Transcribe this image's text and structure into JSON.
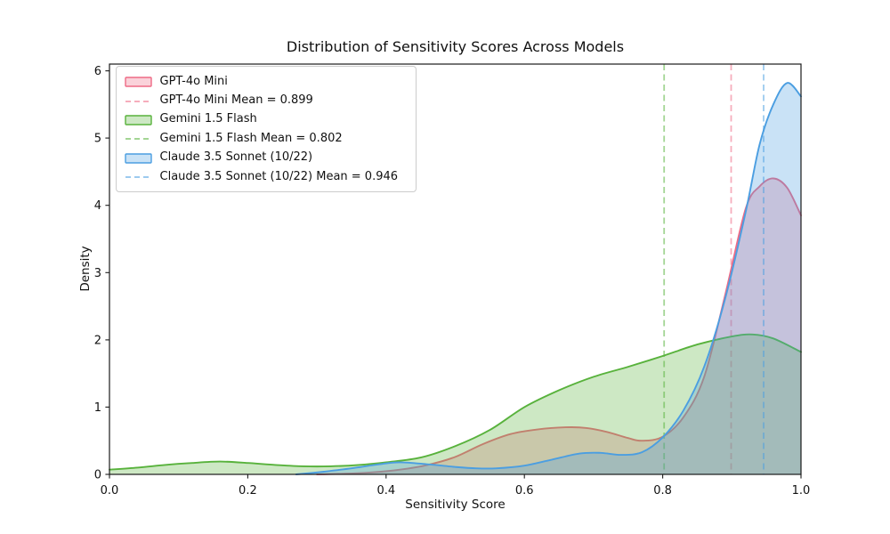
{
  "title": "Distribution of Sensitivity Scores Across Models",
  "chart_data": {
    "type": "area",
    "subtype": "kde-density",
    "title": "Distribution of Sensitivity Scores Across Models",
    "xlabel": "Sensitivity Score",
    "ylabel": "Density",
    "xlim": [
      0.0,
      1.0
    ],
    "ylim": [
      0,
      6.1
    ],
    "grid": false,
    "legend_position": "upper left",
    "xticks": [
      {
        "v": 0.0,
        "label": "0.0"
      },
      {
        "v": 0.2,
        "label": "0.2"
      },
      {
        "v": 0.4,
        "label": "0.4"
      },
      {
        "v": 0.6,
        "label": "0.6"
      },
      {
        "v": 0.8,
        "label": "0.8"
      },
      {
        "v": 1.0,
        "label": "1.0"
      }
    ],
    "yticks": [
      {
        "v": 0,
        "label": "0"
      },
      {
        "v": 1,
        "label": "1"
      },
      {
        "v": 2,
        "label": "2"
      },
      {
        "v": 3,
        "label": "3"
      },
      {
        "v": 4,
        "label": "4"
      },
      {
        "v": 5,
        "label": "5"
      },
      {
        "v": 6,
        "label": "6"
      }
    ],
    "series": [
      {
        "name": "GPT-4o Mini",
        "color": "#ee6a85",
        "fill_alpha": 0.3,
        "mean": 0.899,
        "mean_label": "GPT-4o Mini Mean = 0.899",
        "mean_alpha": 0.55,
        "points": [
          [
            0.3,
            0.0
          ],
          [
            0.34,
            0.01
          ],
          [
            0.38,
            0.03
          ],
          [
            0.42,
            0.07
          ],
          [
            0.46,
            0.14
          ],
          [
            0.5,
            0.26
          ],
          [
            0.54,
            0.45
          ],
          [
            0.58,
            0.6
          ],
          [
            0.62,
            0.67
          ],
          [
            0.66,
            0.7
          ],
          [
            0.69,
            0.69
          ],
          [
            0.72,
            0.63
          ],
          [
            0.75,
            0.54
          ],
          [
            0.77,
            0.5
          ],
          [
            0.8,
            0.56
          ],
          [
            0.83,
            0.85
          ],
          [
            0.86,
            1.45
          ],
          [
            0.89,
            2.65
          ],
          [
            0.92,
            3.95
          ],
          [
            0.94,
            4.28
          ],
          [
            0.96,
            4.4
          ],
          [
            0.98,
            4.26
          ],
          [
            1.0,
            3.85
          ]
        ]
      },
      {
        "name": "Gemini 1.5 Flash",
        "color": "#58b23c",
        "fill_alpha": 0.3,
        "mean": 0.802,
        "mean_label": "Gemini 1.5 Flash Mean = 0.802",
        "mean_alpha": 0.55,
        "points": [
          [
            0.0,
            0.07
          ],
          [
            0.04,
            0.1
          ],
          [
            0.08,
            0.14
          ],
          [
            0.12,
            0.17
          ],
          [
            0.16,
            0.19
          ],
          [
            0.2,
            0.17
          ],
          [
            0.24,
            0.14
          ],
          [
            0.28,
            0.12
          ],
          [
            0.32,
            0.12
          ],
          [
            0.36,
            0.14
          ],
          [
            0.4,
            0.18
          ],
          [
            0.45,
            0.25
          ],
          [
            0.5,
            0.42
          ],
          [
            0.55,
            0.66
          ],
          [
            0.6,
            1.0
          ],
          [
            0.65,
            1.25
          ],
          [
            0.7,
            1.45
          ],
          [
            0.75,
            1.6
          ],
          [
            0.8,
            1.76
          ],
          [
            0.85,
            1.93
          ],
          [
            0.9,
            2.05
          ],
          [
            0.93,
            2.08
          ],
          [
            0.96,
            2.02
          ],
          [
            1.0,
            1.82
          ]
        ]
      },
      {
        "name": "Claude 3.5 Sonnet (10/22)",
        "color": "#4b9ee1",
        "fill_alpha": 0.3,
        "mean": 0.946,
        "mean_label": "Claude 3.5 Sonnet (10/22) Mean = 0.946",
        "mean_alpha": 0.55,
        "points": [
          [
            0.27,
            0.0
          ],
          [
            0.31,
            0.04
          ],
          [
            0.35,
            0.09
          ],
          [
            0.39,
            0.15
          ],
          [
            0.42,
            0.18
          ],
          [
            0.46,
            0.15
          ],
          [
            0.5,
            0.11
          ],
          [
            0.53,
            0.09
          ],
          [
            0.56,
            0.09
          ],
          [
            0.6,
            0.13
          ],
          [
            0.64,
            0.22
          ],
          [
            0.68,
            0.31
          ],
          [
            0.71,
            0.32
          ],
          [
            0.74,
            0.29
          ],
          [
            0.77,
            0.33
          ],
          [
            0.8,
            0.55
          ],
          [
            0.83,
            0.95
          ],
          [
            0.86,
            1.6
          ],
          [
            0.89,
            2.6
          ],
          [
            0.92,
            3.9
          ],
          [
            0.94,
            4.9
          ],
          [
            0.96,
            5.5
          ],
          [
            0.98,
            5.82
          ],
          [
            1.0,
            5.62
          ]
        ]
      }
    ],
    "frame_color": "#1a1a1a",
    "text_color": "#111111"
  }
}
